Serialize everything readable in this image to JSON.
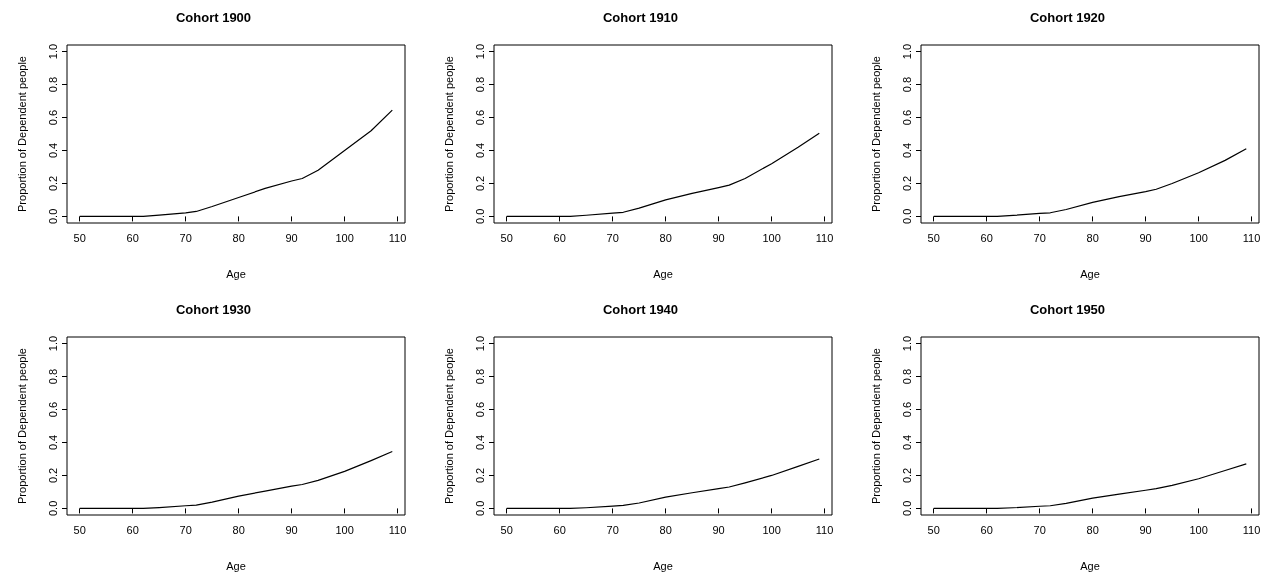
{
  "chart_data": [
    {
      "type": "line",
      "title": "Cohort 1900",
      "xlabel": "Age",
      "ylabel": "Proportion of Dependent people",
      "color": "#000000",
      "xlim": [
        47.6,
        111.4
      ],
      "ylim": [
        -0.04,
        1.04
      ],
      "xticks": [
        50,
        60,
        70,
        80,
        90,
        100,
        110
      ],
      "yticks": [
        {
          "value": 0,
          "label": "0.0"
        },
        {
          "value": 0.2,
          "label": "0.2"
        },
        {
          "value": 0.4,
          "label": "0.4"
        },
        {
          "value": 0.6,
          "label": "0.6"
        },
        {
          "value": 0.8,
          "label": "0.8"
        },
        {
          "value": 1,
          "label": "1.0"
        }
      ],
      "x": [
        50,
        55,
        60,
        62,
        65,
        70,
        72,
        75,
        80,
        85,
        90,
        92,
        95,
        100,
        105,
        109
      ],
      "values": [
        0,
        0,
        0,
        0,
        0.008,
        0.022,
        0.03,
        0.06,
        0.115,
        0.17,
        0.215,
        0.23,
        0.28,
        0.4,
        0.52,
        0.645
      ]
    },
    {
      "type": "line",
      "title": "Cohort 1910",
      "xlabel": "Age",
      "ylabel": "Proportion of Dependent people",
      "color": "#000000",
      "xlim": [
        47.6,
        111.4
      ],
      "ylim": [
        -0.04,
        1.04
      ],
      "xticks": [
        50,
        60,
        70,
        80,
        90,
        100,
        110
      ],
      "yticks": [
        {
          "value": 0,
          "label": "0.0"
        },
        {
          "value": 0.2,
          "label": "0.2"
        },
        {
          "value": 0.4,
          "label": "0.4"
        },
        {
          "value": 0.6,
          "label": "0.6"
        },
        {
          "value": 0.8,
          "label": "0.8"
        },
        {
          "value": 1,
          "label": "1.0"
        }
      ],
      "x": [
        50,
        55,
        60,
        62,
        65,
        70,
        72,
        75,
        80,
        85,
        90,
        92,
        95,
        100,
        105,
        109
      ],
      "values": [
        0,
        0,
        0,
        0,
        0.007,
        0.02,
        0.025,
        0.05,
        0.1,
        0.14,
        0.175,
        0.19,
        0.23,
        0.32,
        0.42,
        0.505
      ]
    },
    {
      "type": "line",
      "title": "Cohort 1920",
      "xlabel": "Age",
      "ylabel": "Proportion of Dependent people",
      "color": "#000000",
      "xlim": [
        47.6,
        111.4
      ],
      "ylim": [
        -0.04,
        1.04
      ],
      "xticks": [
        50,
        60,
        70,
        80,
        90,
        100,
        110
      ],
      "yticks": [
        {
          "value": 0,
          "label": "0.0"
        },
        {
          "value": 0.2,
          "label": "0.2"
        },
        {
          "value": 0.4,
          "label": "0.4"
        },
        {
          "value": 0.6,
          "label": "0.6"
        },
        {
          "value": 0.8,
          "label": "0.8"
        },
        {
          "value": 1,
          "label": "1.0"
        }
      ],
      "x": [
        50,
        55,
        60,
        62,
        65,
        70,
        72,
        75,
        80,
        85,
        90,
        92,
        95,
        100,
        105,
        109
      ],
      "values": [
        0,
        0,
        0,
        0,
        0.006,
        0.018,
        0.022,
        0.042,
        0.085,
        0.12,
        0.15,
        0.165,
        0.2,
        0.265,
        0.34,
        0.41
      ]
    },
    {
      "type": "line",
      "title": "Cohort 1930",
      "xlabel": "Age",
      "ylabel": "Proportion of Dependent people",
      "color": "#000000",
      "xlim": [
        47.6,
        111.4
      ],
      "ylim": [
        -0.04,
        1.04
      ],
      "xticks": [
        50,
        60,
        70,
        80,
        90,
        100,
        110
      ],
      "yticks": [
        {
          "value": 0,
          "label": "0.0"
        },
        {
          "value": 0.2,
          "label": "0.2"
        },
        {
          "value": 0.4,
          "label": "0.4"
        },
        {
          "value": 0.6,
          "label": "0.6"
        },
        {
          "value": 0.8,
          "label": "0.8"
        },
        {
          "value": 1,
          "label": "1.0"
        }
      ],
      "x": [
        50,
        55,
        60,
        62,
        65,
        70,
        72,
        75,
        80,
        85,
        90,
        92,
        95,
        100,
        105,
        109
      ],
      "values": [
        0,
        0,
        0,
        0,
        0.005,
        0.016,
        0.02,
        0.038,
        0.075,
        0.105,
        0.135,
        0.145,
        0.17,
        0.225,
        0.29,
        0.345
      ]
    },
    {
      "type": "line",
      "title": "Cohort 1940",
      "xlabel": "Age",
      "ylabel": "Proportion of Dependent people",
      "color": "#000000",
      "xlim": [
        47.6,
        111.4
      ],
      "ylim": [
        -0.04,
        1.04
      ],
      "xticks": [
        50,
        60,
        70,
        80,
        90,
        100,
        110
      ],
      "yticks": [
        {
          "value": 0,
          "label": "0.0"
        },
        {
          "value": 0.2,
          "label": "0.2"
        },
        {
          "value": 0.4,
          "label": "0.4"
        },
        {
          "value": 0.6,
          "label": "0.6"
        },
        {
          "value": 0.8,
          "label": "0.8"
        },
        {
          "value": 1,
          "label": "1.0"
        }
      ],
      "x": [
        50,
        55,
        60,
        62,
        65,
        70,
        72,
        75,
        80,
        85,
        90,
        92,
        95,
        100,
        105,
        109
      ],
      "values": [
        0,
        0,
        0,
        0,
        0.004,
        0.014,
        0.018,
        0.033,
        0.068,
        0.095,
        0.12,
        0.13,
        0.155,
        0.2,
        0.255,
        0.3
      ]
    },
    {
      "type": "line",
      "title": "Cohort 1950",
      "xlabel": "Age",
      "ylabel": "Proportion of Dependent people",
      "color": "#000000",
      "xlim": [
        47.6,
        111.4
      ],
      "ylim": [
        -0.04,
        1.04
      ],
      "xticks": [
        50,
        60,
        70,
        80,
        90,
        100,
        110
      ],
      "yticks": [
        {
          "value": 0,
          "label": "0.0"
        },
        {
          "value": 0.2,
          "label": "0.2"
        },
        {
          "value": 0.4,
          "label": "0.4"
        },
        {
          "value": 0.6,
          "label": "0.6"
        },
        {
          "value": 0.8,
          "label": "0.8"
        },
        {
          "value": 1,
          "label": "1.0"
        }
      ],
      "x": [
        50,
        55,
        60,
        62,
        65,
        70,
        72,
        75,
        80,
        85,
        90,
        92,
        95,
        100,
        105,
        109
      ],
      "values": [
        0,
        0,
        0,
        0,
        0.004,
        0.013,
        0.016,
        0.03,
        0.062,
        0.087,
        0.11,
        0.12,
        0.14,
        0.18,
        0.23,
        0.27
      ]
    }
  ]
}
